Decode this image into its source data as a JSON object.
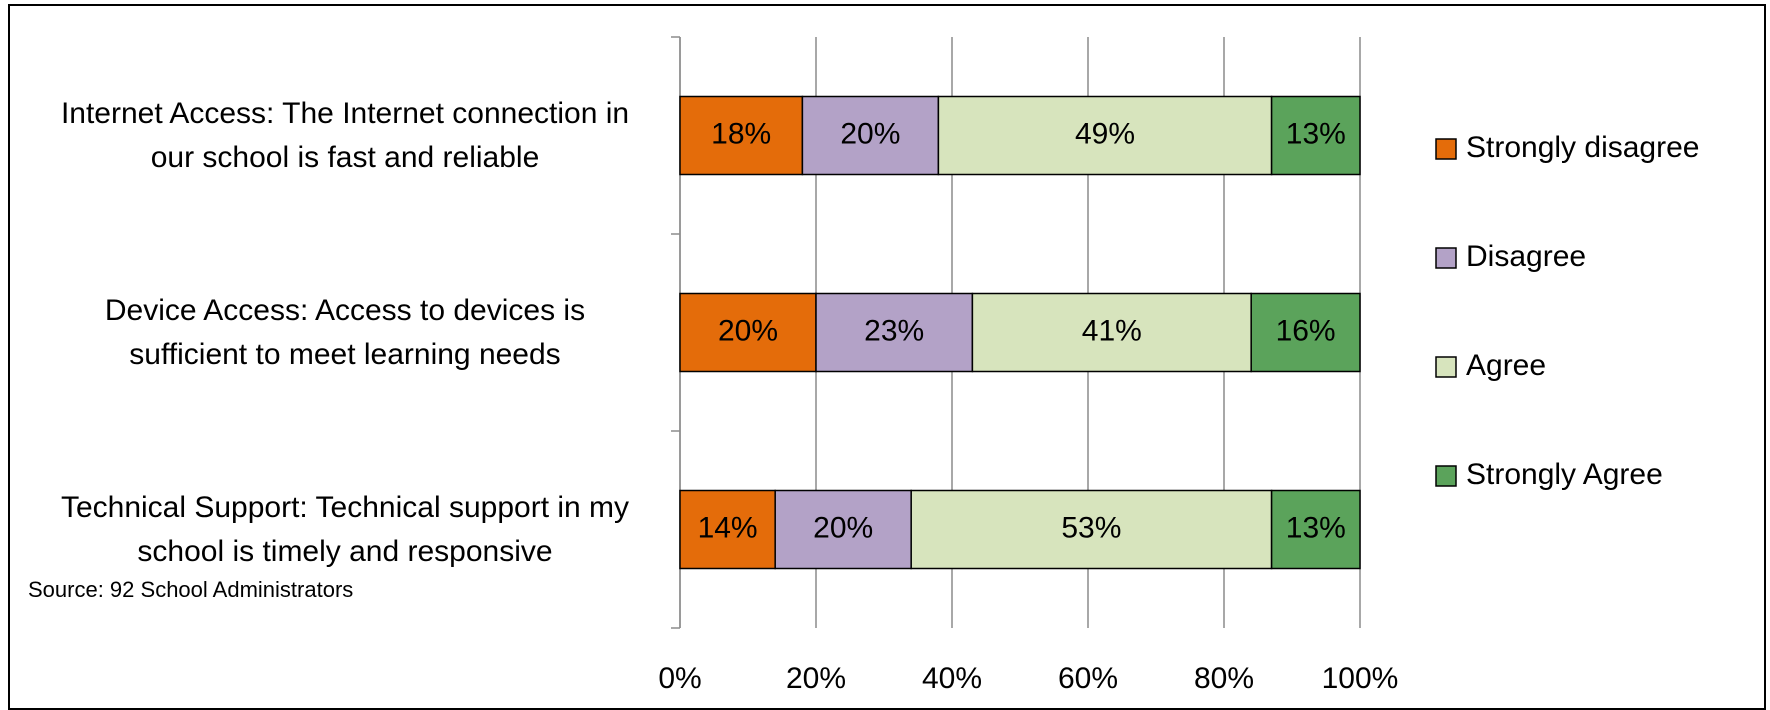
{
  "chart_data": {
    "type": "stacked-bar-horizontal",
    "categories": [
      "Internet Access: The Internet connection in our school is fast and reliable",
      "Device Access: Access to devices is sufficient to meet learning needs",
      "Technical Support: Technical support in my school is timely and responsive"
    ],
    "series": [
      {
        "name": "Strongly disagree",
        "color": "#e46c0a",
        "values": [
          18,
          20,
          14
        ],
        "value_labels": [
          "18%",
          "20%",
          "14%"
        ]
      },
      {
        "name": "Disagree",
        "color": "#b3a2c7",
        "values": [
          20,
          23,
          20
        ],
        "value_labels": [
          "20%",
          "23%",
          "20%"
        ]
      },
      {
        "name": "Agree",
        "color": "#d7e4bd",
        "values": [
          49,
          41,
          53
        ],
        "value_labels": [
          "49%",
          "41%",
          "53%"
        ]
      },
      {
        "name": "Strongly Agree",
        "color": "#5ba35b",
        "values": [
          13,
          16,
          13
        ],
        "value_labels": [
          "13%",
          "16%",
          "13%"
        ]
      }
    ],
    "xlim": [
      0,
      100
    ],
    "xticks": [
      {
        "value": 0,
        "label": "0%"
      },
      {
        "value": 20,
        "label": "20%"
      },
      {
        "value": 40,
        "label": "40%"
      },
      {
        "value": 60,
        "label": "60%"
      },
      {
        "value": 80,
        "label": "80%"
      },
      {
        "value": 100,
        "label": "100%"
      }
    ],
    "grid": true,
    "legend": "right",
    "annotation": "Source:  92 School Administrators"
  }
}
